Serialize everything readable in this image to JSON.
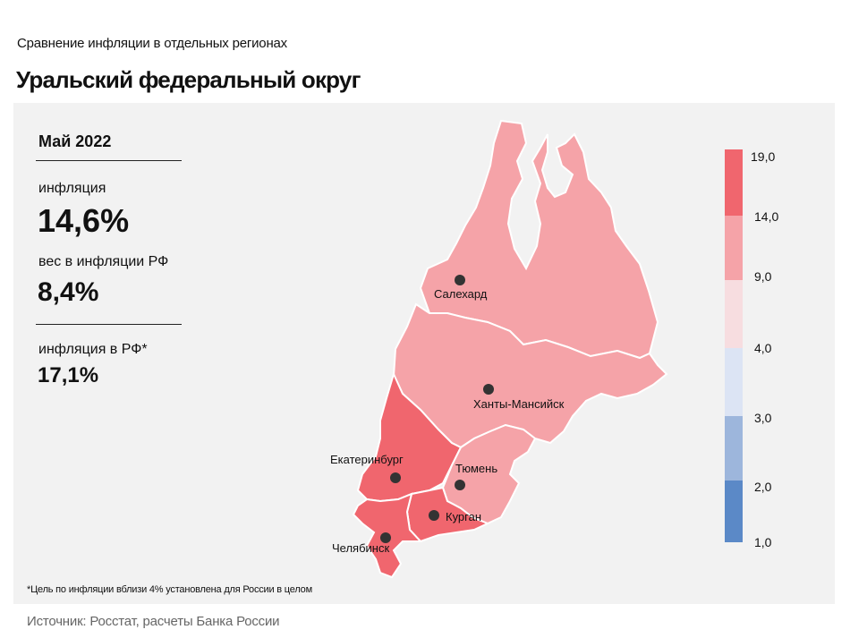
{
  "header": {
    "subtitle": "Сравнение инфляции в отдельных регионах",
    "title": "Уральский федеральный округ"
  },
  "stats": {
    "period": "Май 2022",
    "inflation_label": "инфляция",
    "inflation_value": "14,6%",
    "weight_label": "вес в инфляции РФ",
    "weight_value": "8,4%",
    "rf_label": "инфляция в РФ*",
    "rf_value": "17,1%"
  },
  "cities": {
    "salekhard": "Салехард",
    "khanty": "Ханты-Мансийск",
    "ekb": "Екатеринбург",
    "tyumen": "Тюмень",
    "kurgan": "Курган",
    "chelyabinsk": "Челябинск"
  },
  "legend": {
    "ticks": [
      "19,0",
      "14,0",
      "9,0",
      "4,0",
      "3,0",
      "2,0",
      "1,0"
    ],
    "colors": [
      "#f0666e",
      "#f5a3a8",
      "#f7dde0",
      "#dce4f4",
      "#9db6dc",
      "#5b89c7"
    ]
  },
  "colors": {
    "high": "#f0666e",
    "mid": "#f5a3a8",
    "dot": "#333333"
  },
  "footnote": "*Цель по инфляции вблизи 4% установлена для России в целом",
  "source": "Источник: Росстат, расчеты Банка России"
}
